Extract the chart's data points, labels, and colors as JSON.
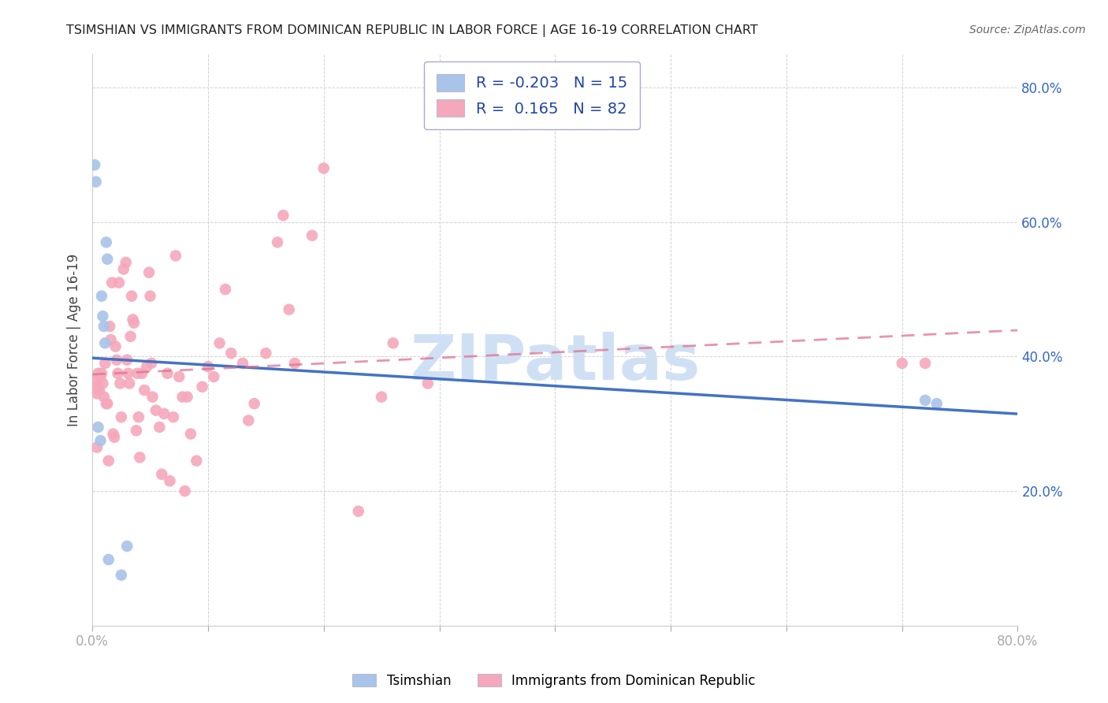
{
  "title": "TSIMSHIAN VS IMMIGRANTS FROM DOMINICAN REPUBLIC IN LABOR FORCE | AGE 16-19 CORRELATION CHART",
  "source": "Source: ZipAtlas.com",
  "ylabel": "In Labor Force | Age 16-19",
  "xlim": [
    0.0,
    0.8
  ],
  "ylim": [
    0.0,
    0.85
  ],
  "x_ticks": [
    0.0,
    0.1,
    0.2,
    0.3,
    0.4,
    0.5,
    0.6,
    0.7,
    0.8
  ],
  "y_ticks": [
    0.0,
    0.2,
    0.4,
    0.6,
    0.8
  ],
  "legend_labels": [
    "Tsimshian",
    "Immigrants from Dominican Republic"
  ],
  "R_tsimshian": -0.203,
  "N_tsimshian": 15,
  "R_dominican": 0.165,
  "N_dominican": 82,
  "color_tsimshian": "#a8c4e8",
  "color_dominican": "#f5a8bb",
  "color_trend_tsimshian": "#4472c4",
  "color_trend_dominican": "#e07090",
  "watermark": "ZIPatlas",
  "watermark_color": "#d0e0f4",
  "tsimshian_x": [
    0.002,
    0.003,
    0.005,
    0.007,
    0.008,
    0.009,
    0.01,
    0.011,
    0.012,
    0.013,
    0.014,
    0.025,
    0.03,
    0.72,
    0.73
  ],
  "tsimshian_y": [
    0.685,
    0.66,
    0.295,
    0.275,
    0.49,
    0.46,
    0.445,
    0.42,
    0.57,
    0.545,
    0.098,
    0.075,
    0.118,
    0.335,
    0.33
  ],
  "dominican_x": [
    0.003,
    0.003,
    0.004,
    0.004,
    0.005,
    0.005,
    0.006,
    0.007,
    0.008,
    0.009,
    0.01,
    0.011,
    0.012,
    0.013,
    0.014,
    0.015,
    0.016,
    0.017,
    0.018,
    0.019,
    0.02,
    0.021,
    0.022,
    0.023,
    0.024,
    0.025,
    0.027,
    0.029,
    0.03,
    0.031,
    0.032,
    0.033,
    0.034,
    0.035,
    0.036,
    0.038,
    0.039,
    0.04,
    0.041,
    0.043,
    0.045,
    0.047,
    0.049,
    0.05,
    0.051,
    0.052,
    0.055,
    0.058,
    0.06,
    0.062,
    0.065,
    0.067,
    0.07,
    0.072,
    0.075,
    0.078,
    0.08,
    0.082,
    0.085,
    0.09,
    0.095,
    0.1,
    0.105,
    0.11,
    0.115,
    0.12,
    0.13,
    0.135,
    0.14,
    0.15,
    0.16,
    0.165,
    0.17,
    0.175,
    0.19,
    0.2,
    0.23,
    0.25,
    0.26,
    0.29,
    0.7,
    0.72
  ],
  "dominican_y": [
    0.365,
    0.355,
    0.345,
    0.265,
    0.375,
    0.355,
    0.35,
    0.37,
    0.375,
    0.36,
    0.34,
    0.39,
    0.33,
    0.33,
    0.245,
    0.445,
    0.425,
    0.51,
    0.285,
    0.28,
    0.415,
    0.395,
    0.375,
    0.51,
    0.36,
    0.31,
    0.53,
    0.54,
    0.395,
    0.375,
    0.36,
    0.43,
    0.49,
    0.455,
    0.45,
    0.29,
    0.375,
    0.31,
    0.25,
    0.375,
    0.35,
    0.385,
    0.525,
    0.49,
    0.39,
    0.34,
    0.32,
    0.295,
    0.225,
    0.315,
    0.375,
    0.215,
    0.31,
    0.55,
    0.37,
    0.34,
    0.2,
    0.34,
    0.285,
    0.245,
    0.355,
    0.385,
    0.37,
    0.42,
    0.5,
    0.405,
    0.39,
    0.305,
    0.33,
    0.405,
    0.57,
    0.61,
    0.47,
    0.39,
    0.58,
    0.68,
    0.17,
    0.34,
    0.42,
    0.36,
    0.39,
    0.39
  ]
}
